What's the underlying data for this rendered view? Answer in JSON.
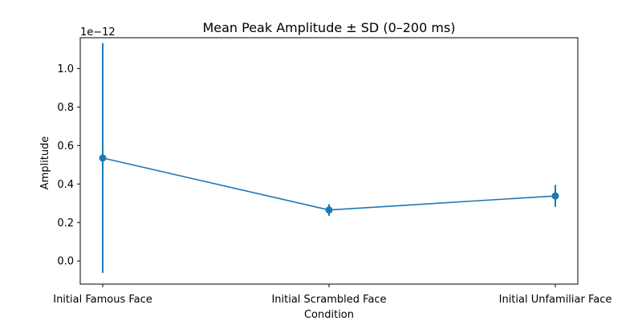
{
  "chart_data": {
    "type": "line",
    "title": "Mean Peak Amplitude ± SD (0–200 ms)",
    "xlabel": "Condition",
    "ylabel": "Amplitude",
    "y_offset_text": "1e−12",
    "y_scale_exponent": -12,
    "categories": [
      "Initial Famous Face",
      "Initial Scrambled Face",
      "Initial Unfamiliar Face"
    ],
    "values": [
      0.535,
      0.265,
      0.338
    ],
    "sd": [
      0.597,
      0.03,
      0.057
    ],
    "yticks": [
      0.0,
      0.2,
      0.4,
      0.6,
      0.8,
      1.0
    ],
    "ytick_labels": [
      "0.0",
      "0.2",
      "0.4",
      "0.6",
      "0.8",
      "1.0"
    ],
    "ylim": [
      -0.12,
      1.16
    ],
    "grid": false,
    "color": "#1f77b4"
  }
}
